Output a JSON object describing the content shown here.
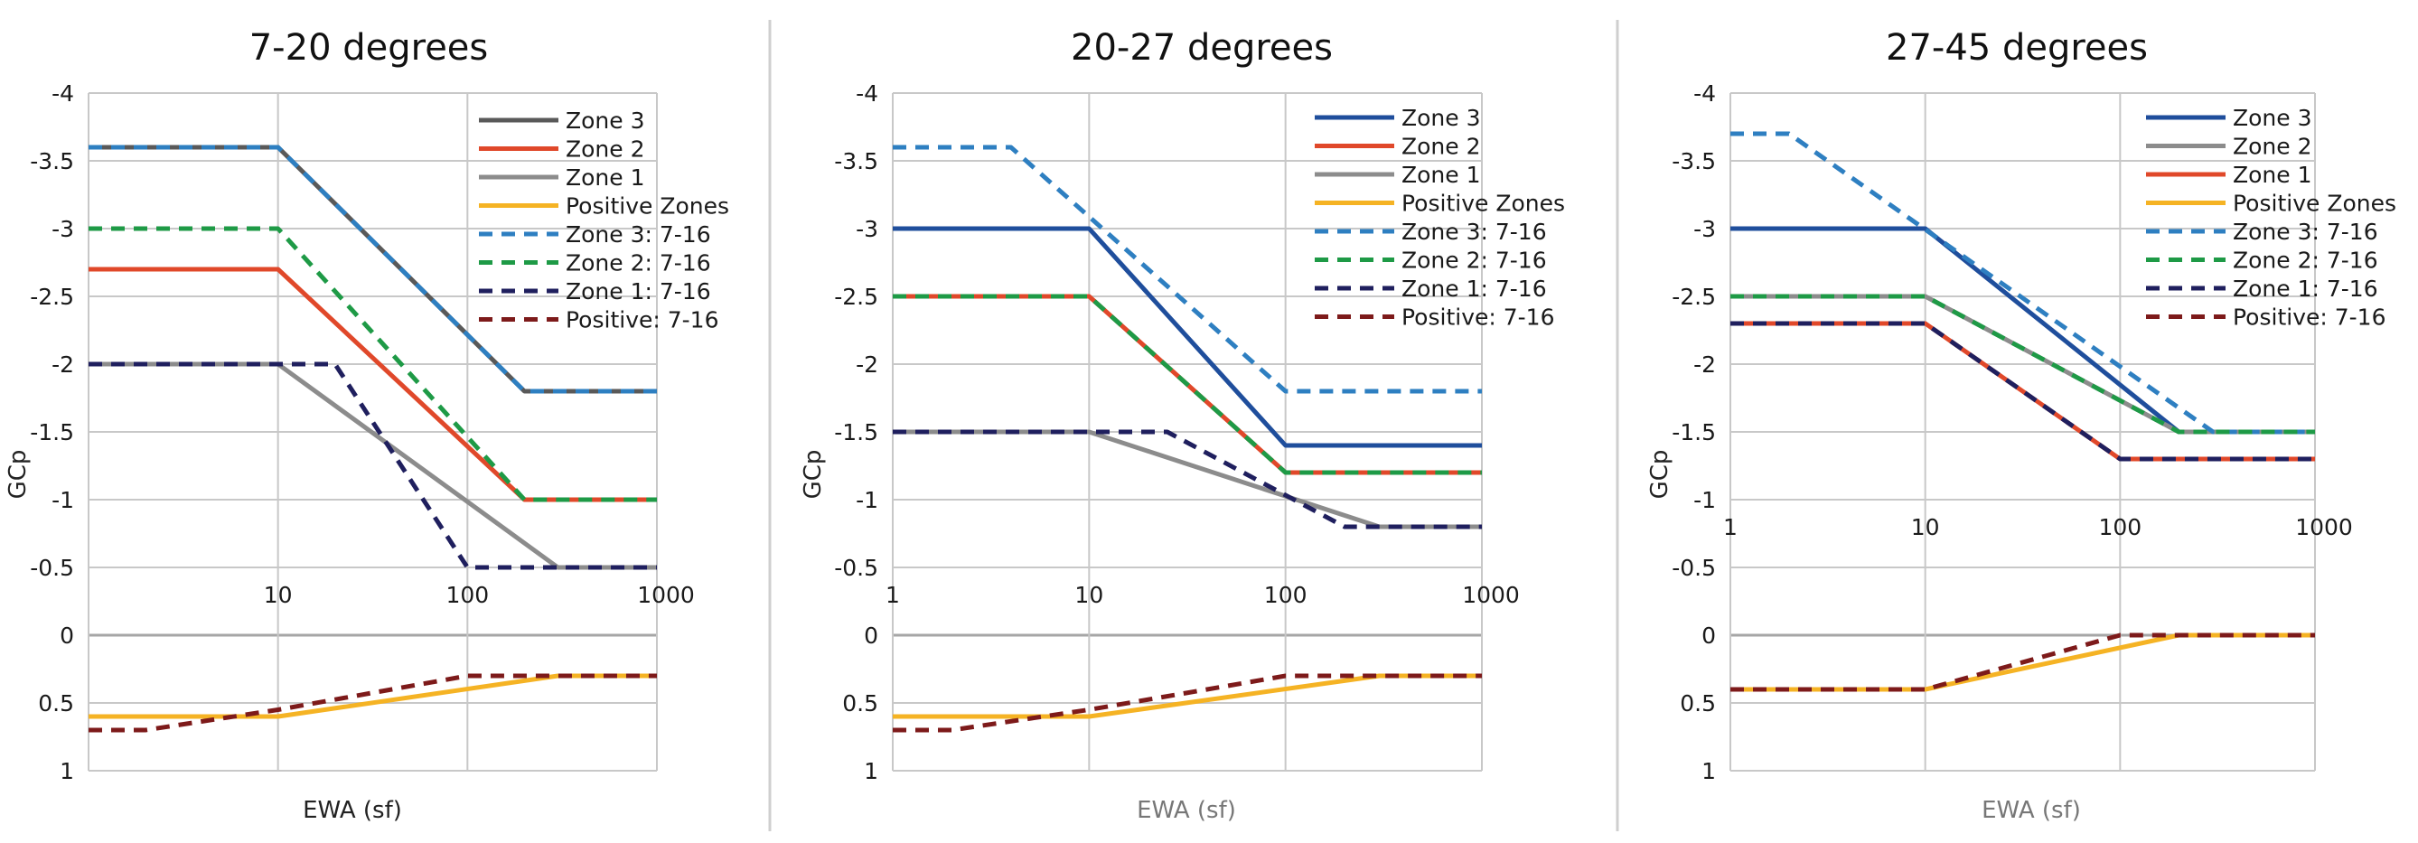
{
  "colors": {
    "zone3_solid_dark": "#595959",
    "zone3_blue": "#1f4e9c",
    "zone2_red": "#e0482a",
    "zone2_grey": "#8c8c8c",
    "zone1_grey": "#8c8c8c",
    "zone1_red": "#e0482a",
    "positive": "#f5b324",
    "dash_zone3": "#2e7fc1",
    "dash_zone2": "#1e9a46",
    "dash_zone1": "#1f1f5e",
    "dash_positive": "#7d1a1a",
    "grid": "#c8c8c8",
    "zero_line": "#a6a6a6",
    "divider": "#cfcfcf"
  },
  "chart_data": [
    {
      "type": "line",
      "title": "7-20 degrees",
      "xlabel": "EWA (sf)",
      "ylabel": "GCp",
      "x_scale": "log",
      "xlim": [
        1,
        1000
      ],
      "ylim": [
        -4,
        1
      ],
      "y_reversed": true,
      "y_ticks": [
        -4,
        -3.5,
        -3,
        -2.5,
        -2,
        -1.5,
        -1,
        -0.5,
        0,
        0.5,
        1
      ],
      "y_tick_labels": [
        "-4",
        "-3.5",
        "-3",
        "-2.5",
        "-2",
        "-1.5",
        "-1",
        "-0.5",
        "0",
        "0.5",
        "1"
      ],
      "x_ticks": [
        10,
        100,
        1000
      ],
      "x_tick_labels": [
        "10",
        "100",
        "1000"
      ],
      "x_tick_label_position": "at y = -0.3",
      "series": [
        {
          "name": "Zone 3",
          "style": "solid",
          "color_key": "zone3_solid_dark",
          "x": [
            1,
            10,
            200,
            1000
          ],
          "y": [
            -3.6,
            -3.6,
            -1.8,
            -1.8
          ]
        },
        {
          "name": "Zone 2",
          "style": "solid",
          "color_key": "zone2_red",
          "x": [
            1,
            10,
            200,
            1000
          ],
          "y": [
            -2.7,
            -2.7,
            -1.0,
            -1.0
          ]
        },
        {
          "name": "Zone 1",
          "style": "solid",
          "color_key": "zone1_grey",
          "x": [
            1,
            10,
            300,
            1000
          ],
          "y": [
            -2.0,
            -2.0,
            -0.5,
            -0.5
          ]
        },
        {
          "name": "Positive Zones",
          "style": "solid",
          "color_key": "positive",
          "x": [
            1,
            10,
            300,
            1000
          ],
          "y": [
            0.6,
            0.6,
            0.3,
            0.3
          ]
        },
        {
          "name": "Zone 3: 7-16",
          "style": "dashed",
          "color_key": "dash_zone3",
          "x": [
            1,
            10,
            200,
            1000
          ],
          "y": [
            -3.6,
            -3.6,
            -1.8,
            -1.8
          ]
        },
        {
          "name": "Zone 2: 7-16",
          "style": "dashed",
          "color_key": "dash_zone2",
          "x": [
            1,
            10,
            200,
            1000
          ],
          "y": [
            -3.0,
            -3.0,
            -1.0,
            -1.0
          ]
        },
        {
          "name": "Zone 1: 7-16",
          "style": "dashed",
          "color_key": "dash_zone1",
          "x": [
            1,
            20,
            100,
            1000
          ],
          "y": [
            -2.0,
            -2.0,
            -0.5,
            -0.5
          ]
        },
        {
          "name": "Positive: 7-16",
          "style": "dashed",
          "color_key": "dash_positive",
          "x": [
            1,
            2,
            10,
            100,
            1000
          ],
          "y": [
            0.7,
            0.7,
            0.55,
            0.3,
            0.3
          ]
        }
      ]
    },
    {
      "type": "line",
      "title": "20-27 degrees",
      "xlabel": "EWA (sf)",
      "ylabel": "GCp",
      "x_scale": "log",
      "xlim": [
        1,
        1000
      ],
      "ylim": [
        -4,
        1
      ],
      "y_reversed": true,
      "y_ticks": [
        -4,
        -3.5,
        -3,
        -2.5,
        -2,
        -1.5,
        -1,
        -0.5,
        0,
        0.5,
        1
      ],
      "y_tick_labels": [
        "-4",
        "-3.5",
        "-3",
        "-2.5",
        "-2",
        "-1.5",
        "-1",
        "-0.5",
        "0",
        "0.5",
        "1"
      ],
      "x_ticks": [
        1,
        10,
        100,
        1000
      ],
      "x_tick_labels": [
        "1",
        "10",
        "100",
        "1000"
      ],
      "x_tick_label_position": "at y = -0.3",
      "series": [
        {
          "name": "Zone 3",
          "style": "solid",
          "color_key": "zone3_blue",
          "x": [
            1,
            10,
            100,
            1000
          ],
          "y": [
            -3.0,
            -3.0,
            -1.4,
            -1.4
          ]
        },
        {
          "name": "Zone 2",
          "style": "solid",
          "color_key": "zone2_red",
          "x": [
            1,
            10,
            100,
            1000
          ],
          "y": [
            -2.5,
            -2.5,
            -1.2,
            -1.2
          ]
        },
        {
          "name": "Zone 1",
          "style": "solid",
          "color_key": "zone1_grey",
          "x": [
            1,
            10,
            300,
            1000
          ],
          "y": [
            -1.5,
            -1.5,
            -0.8,
            -0.8
          ]
        },
        {
          "name": "Positive Zones",
          "style": "solid",
          "color_key": "positive",
          "x": [
            1,
            10,
            300,
            1000
          ],
          "y": [
            0.6,
            0.6,
            0.3,
            0.3
          ]
        },
        {
          "name": "Zone 3: 7-16",
          "style": "dashed",
          "color_key": "dash_zone3",
          "x": [
            1,
            4,
            100,
            1000
          ],
          "y": [
            -3.6,
            -3.6,
            -1.8,
            -1.8
          ]
        },
        {
          "name": "Zone 2: 7-16",
          "style": "dashed",
          "color_key": "dash_zone2",
          "x": [
            1,
            10,
            100,
            1000
          ],
          "y": [
            -2.5,
            -2.5,
            -1.2,
            -1.2
          ]
        },
        {
          "name": "Zone 1: 7-16",
          "style": "dashed",
          "color_key": "dash_zone1",
          "x": [
            1,
            25,
            200,
            1000
          ],
          "y": [
            -1.5,
            -1.5,
            -0.8,
            -0.8
          ]
        },
        {
          "name": "Positive: 7-16",
          "style": "dashed",
          "color_key": "dash_positive",
          "x": [
            1,
            2,
            10,
            100,
            1000
          ],
          "y": [
            0.7,
            0.7,
            0.55,
            0.3,
            0.3
          ]
        }
      ]
    },
    {
      "type": "line",
      "title": "27-45 degrees",
      "xlabel": "EWA (sf)",
      "ylabel": "GCp",
      "x_scale": "log",
      "xlim": [
        1,
        1000
      ],
      "ylim": [
        -4,
        1
      ],
      "y_reversed": true,
      "y_ticks": [
        -4,
        -3.5,
        -3,
        -2.5,
        -2,
        -1.5,
        -1,
        -0.5,
        0,
        0.5,
        1
      ],
      "y_tick_labels": [
        "-4",
        "-3.5",
        "-3",
        "-2.5",
        "-2",
        "-1.5",
        "-1",
        "-0.5",
        "0",
        "0.5",
        "1"
      ],
      "x_ticks": [
        1,
        10,
        100,
        1000
      ],
      "x_tick_labels": [
        "1",
        "10",
        "100",
        "1000"
      ],
      "x_tick_label_position": "at y = -0.8",
      "series": [
        {
          "name": "Zone 3",
          "style": "solid",
          "color_key": "zone3_blue",
          "x": [
            1,
            10,
            200,
            1000
          ],
          "y": [
            -3.0,
            -3.0,
            -1.5,
            -1.5
          ]
        },
        {
          "name": "Zone 2",
          "style": "solid",
          "color_key": "zone2_grey",
          "x": [
            1,
            10,
            200,
            1000
          ],
          "y": [
            -2.5,
            -2.5,
            -1.5,
            -1.5
          ]
        },
        {
          "name": "Zone 1",
          "style": "solid",
          "color_key": "zone1_red",
          "x": [
            1,
            10,
            100,
            1000
          ],
          "y": [
            -2.3,
            -2.3,
            -1.3,
            -1.3
          ]
        },
        {
          "name": "Positive Zones",
          "style": "solid",
          "color_key": "positive",
          "x": [
            1,
            10,
            200,
            1000
          ],
          "y": [
            0.4,
            0.4,
            0.0,
            0.0
          ]
        },
        {
          "name": "Zone 3: 7-16",
          "style": "dashed",
          "color_key": "dash_zone3",
          "x": [
            1,
            2,
            300,
            1000
          ],
          "y": [
            -3.7,
            -3.7,
            -1.5,
            -1.5
          ]
        },
        {
          "name": "Zone 2: 7-16",
          "style": "dashed",
          "color_key": "dash_zone2",
          "x": [
            1,
            10,
            200,
            1000
          ],
          "y": [
            -2.5,
            -2.5,
            -1.5,
            -1.5
          ]
        },
        {
          "name": "Zone 1: 7-16",
          "style": "dashed",
          "color_key": "dash_zone1",
          "x": [
            1,
            10,
            100,
            1000
          ],
          "y": [
            -2.3,
            -2.3,
            -1.3,
            -1.3
          ]
        },
        {
          "name": "Positive: 7-16",
          "style": "dashed",
          "color_key": "dash_positive",
          "x": [
            1,
            10,
            100,
            1000
          ],
          "y": [
            0.4,
            0.4,
            0.0,
            0.0
          ]
        }
      ]
    }
  ]
}
